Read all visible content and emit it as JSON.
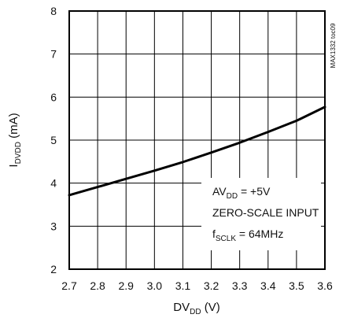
{
  "chart_data": {
    "type": "line",
    "x": [
      2.7,
      2.8,
      2.9,
      3.0,
      3.1,
      3.2,
      3.3,
      3.4,
      3.5,
      3.6
    ],
    "series": [
      {
        "values": [
          3.72,
          3.91,
          4.1,
          4.29,
          4.49,
          4.71,
          4.94,
          5.19,
          5.45,
          5.77
        ]
      }
    ],
    "xlim": [
      2.7,
      3.6
    ],
    "ylim": [
      2,
      8
    ],
    "xticks": [
      "2.7",
      "2.8",
      "2.9",
      "3.0",
      "3.1",
      "3.2",
      "3.3",
      "3.4",
      "3.5",
      "3.6"
    ],
    "yticks": [
      "2",
      "3",
      "4",
      "5",
      "6",
      "7",
      "8"
    ],
    "grid": true,
    "xlabel": {
      "main": "DV",
      "sub": "DD",
      "tail": " (V)"
    },
    "ylabel": {
      "main": "I",
      "sub": "DVDD",
      "tail": " (mA)"
    },
    "annotation": {
      "line1": {
        "main": "AV",
        "sub": "DD",
        "tail": " = +5V"
      },
      "line2": "ZERO-SCALE INPUT",
      "line3": {
        "main": "f",
        "sub": "SCLK",
        "tail": " = 64MHz"
      }
    },
    "figure_id": "MAX1332 toc09"
  }
}
